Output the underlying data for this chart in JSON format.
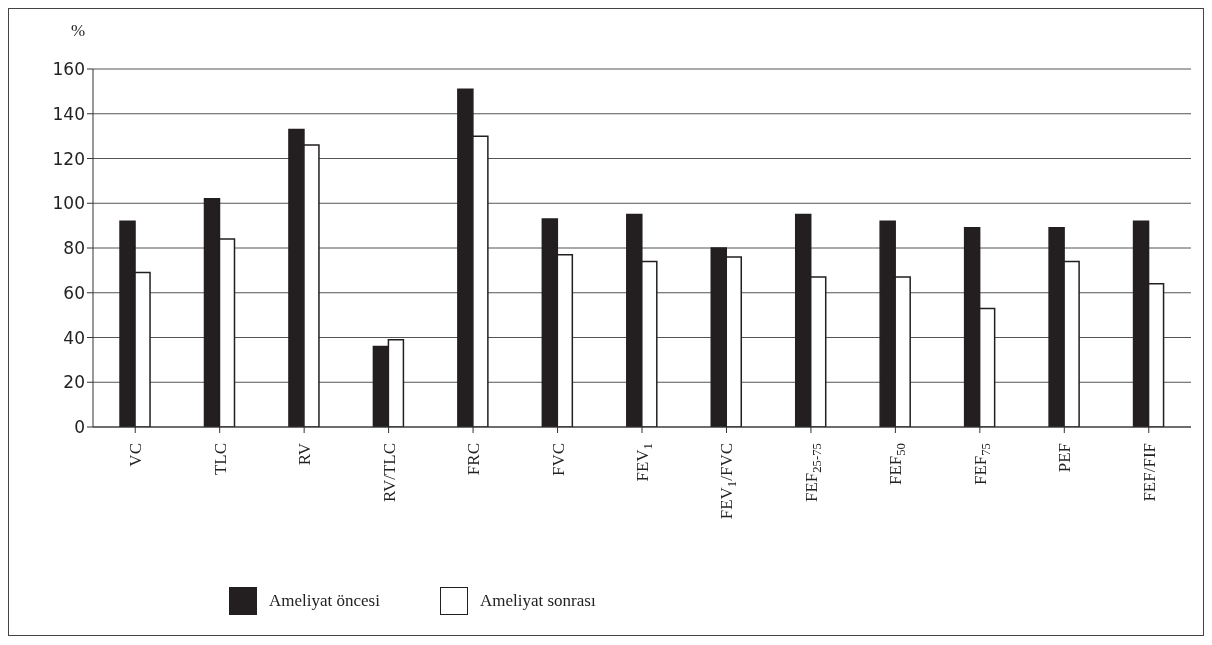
{
  "chart_data": {
    "type": "bar",
    "ylabel": "%",
    "categories": [
      "VC",
      "TLC",
      "RV",
      "RV/TLC",
      "FRC",
      "FVC",
      "FEV$_{1}$",
      "FEV$_{1}$/FVC",
      "FEF$_{25-75}$",
      "FEF$_{50}$",
      "FEF$_{75}$",
      "PEF",
      "FEF/FIF"
    ],
    "series": [
      {
        "name": "Ameliyat öncesi",
        "color": "#231f20",
        "values": [
          92,
          102,
          133,
          36,
          151,
          93,
          95,
          80,
          95,
          92,
          89,
          89,
          92
        ]
      },
      {
        "name": "Ameliyat sonrası",
        "color": "#ffffff",
        "values": [
          69,
          84,
          126,
          39,
          130,
          77,
          74,
          76,
          67,
          67,
          53,
          74,
          64
        ]
      }
    ],
    "ylim": [
      0,
      160
    ],
    "yticks": [
      0,
      20,
      40,
      60,
      80,
      100,
      120,
      140,
      160
    ],
    "grid": "y",
    "legend": "bottom"
  }
}
